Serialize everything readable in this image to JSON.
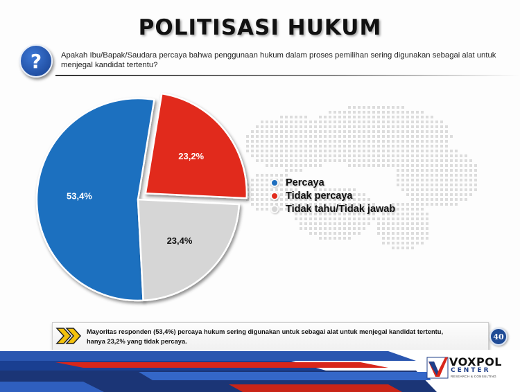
{
  "slide": {
    "title": "POLITISASI HUKUM",
    "question_icon": "question-mark-icon",
    "question": "Apakah Ibu/Bapak/Saudara percaya bahwa penggunaan hukum dalam proses pemilihan sering digunakan sebagai alat untuk menjegal kandidat tertentu?",
    "summary_line1": "Mayoritas responden (53,4%) percaya hukum sering digunakan untuk sebagai alat untuk menjegal kandidat tertentu,",
    "summary_line2": "hanya 23,2% yang tidak percaya.",
    "page_number": "40",
    "logo": {
      "name": "VOXPOL",
      "center": "CENTER",
      "sub": "RESEARCH & CONSULTING"
    }
  },
  "chart_data": {
    "type": "pie",
    "title": "",
    "slices": [
      {
        "label": "Percaya",
        "value": 53.4,
        "display": "53,4%",
        "color": "#1f6fbf"
      },
      {
        "label": "Tidak percaya",
        "value": 23.2,
        "display": "23,2%",
        "color": "#e12b1d",
        "exploded": true
      },
      {
        "label": "Tidak tahu/Tidak jawab",
        "value": 23.4,
        "display": "23,4%",
        "color": "#d6d6d6"
      }
    ],
    "legend_position": "right"
  }
}
